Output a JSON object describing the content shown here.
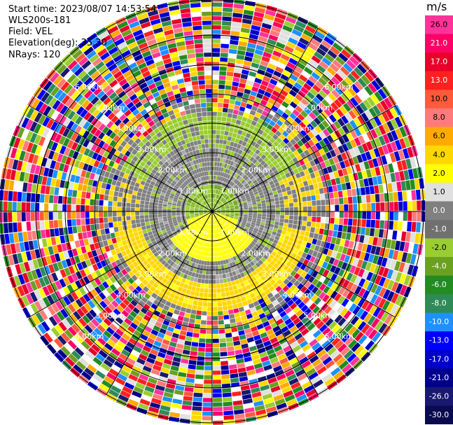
{
  "header": {
    "start_time": "Start time: 2023/08/07 14:53:54",
    "instrument": "WLS200s-181",
    "field": "Field: VEL",
    "elevation": "Elevation(deg): 35.30",
    "nrays": "NRays: 120"
  },
  "ppi": {
    "range_rings_km": [
      "1.00km",
      "2.00km",
      "3.00km",
      "4.00km",
      "5.00km",
      "6.00km"
    ],
    "n_rays": 120
  },
  "colorbar": {
    "unit": "m/s",
    "ticks": [
      "26.0",
      "21.0",
      "17.0",
      "13.0",
      "10.0",
      "8.0",
      "6.0",
      "4.0",
      "2.0",
      "1.0",
      "0.0",
      "-1.0",
      "-2.0",
      "-4.0",
      "-6.0",
      "-8.0",
      "-10.0",
      "-13.0",
      "-17.0",
      "-21.0",
      "-26.0",
      "-30.0"
    ],
    "colors": [
      "#ff3399",
      "#ff0066",
      "#e8002a",
      "#ff2020",
      "#ff5a3a",
      "#ff7a7a",
      "#ffaa00",
      "#ffd700",
      "#ffff00",
      "#e0e0e0",
      "#808080",
      "#707070",
      "#9acd32",
      "#6aa121",
      "#228b22",
      "#2e8b57",
      "#1e90ff",
      "#0000ff",
      "#0000cd",
      "#00008b",
      "#191970",
      "#0a0a50"
    ]
  }
}
